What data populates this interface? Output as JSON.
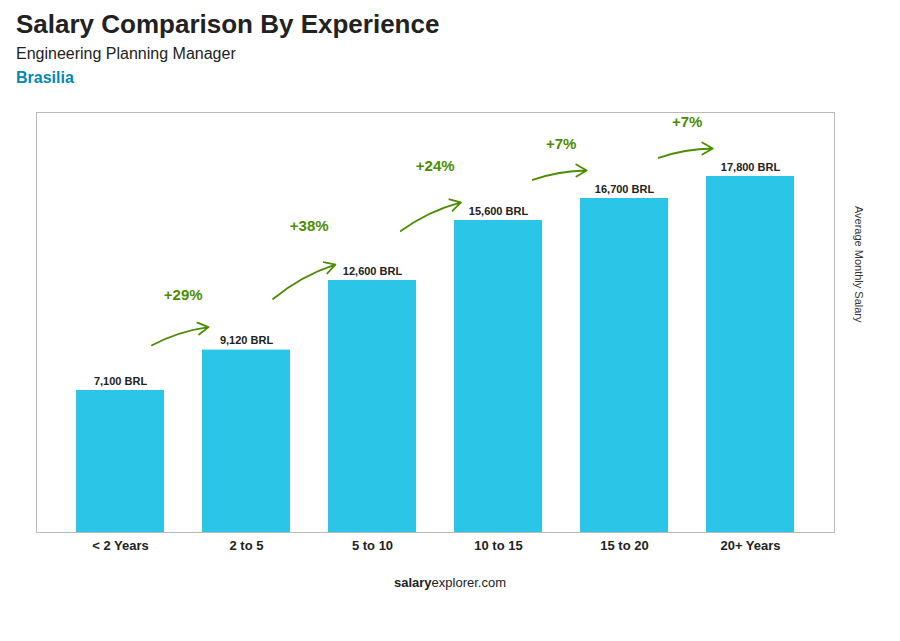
{
  "chart_data": {
    "type": "bar",
    "title": "Salary Comparison By Experience",
    "subtitle": "Engineering Planning Manager",
    "annotations": [
      "Brasilia"
    ],
    "footer": [
      "salary",
      "explorer.com"
    ],
    "ylabel": "Average Monthly Salary",
    "categories": [
      "< 2 Years",
      "2 to 5",
      "5 to 10",
      "10 to 15",
      "15 to 20",
      "20+ Years"
    ],
    "values": [
      7100,
      9120,
      12600,
      15600,
      16700,
      17800
    ],
    "value_labels": [
      "7,100 BRL",
      "9,120 BRL",
      "12,600 BRL",
      "15,600 BRL",
      "16,700 BRL",
      "17,800 BRL"
    ],
    "change_labels": [
      null,
      "+29%",
      "+38%",
      "+24%",
      "+7%",
      "+7%"
    ],
    "color": "#2BC5E8",
    "ylim": [
      0,
      21000
    ],
    "grid": false,
    "data_labels": true,
    "tick_labels": "x"
  }
}
